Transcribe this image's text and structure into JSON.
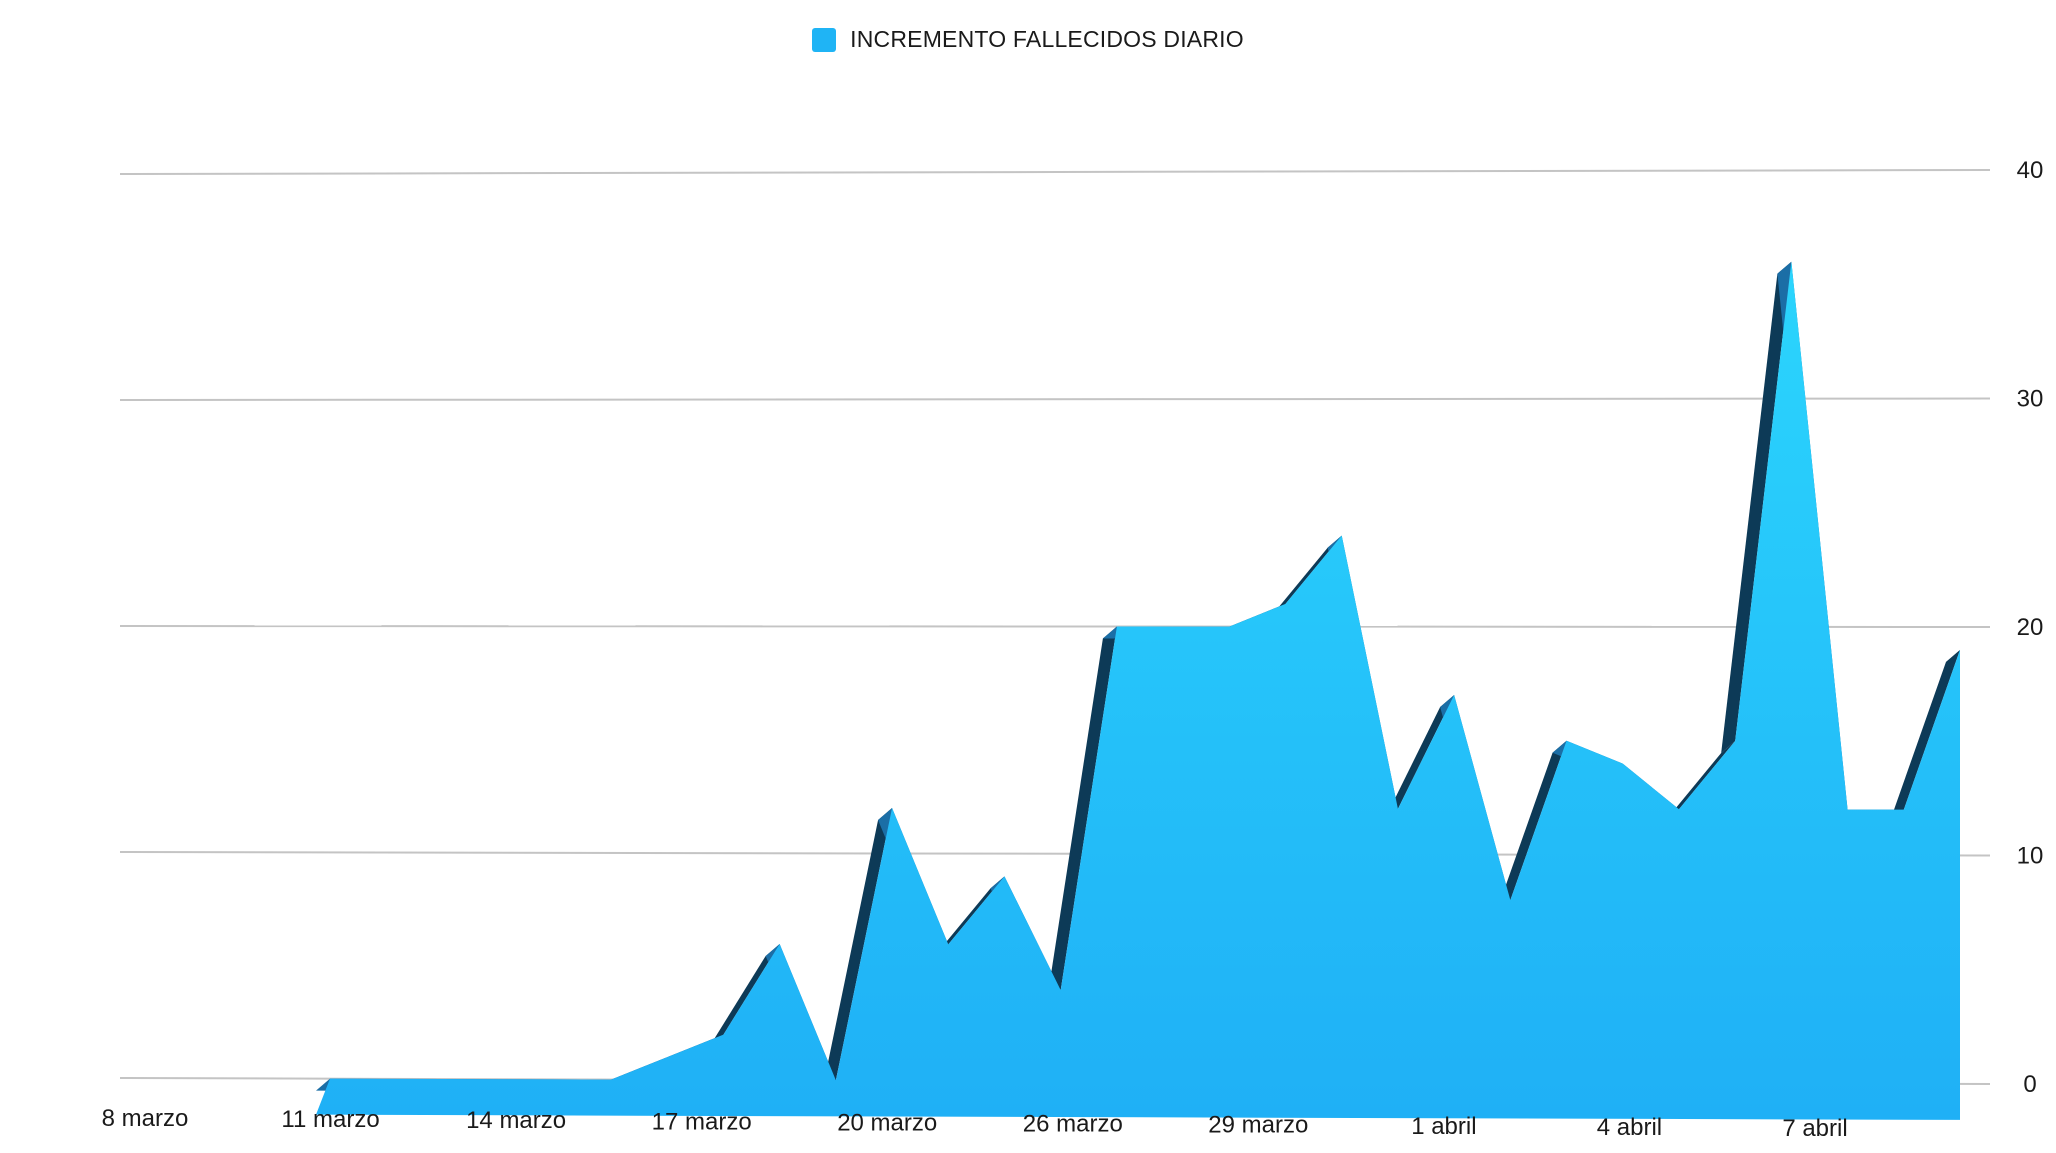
{
  "chart_data": {
    "type": "area",
    "title": "",
    "xlabel": "",
    "ylabel": "",
    "legend": {
      "position": "top",
      "entries": [
        "INCREMENTO FALLECIDOS DIARIO"
      ]
    },
    "x_tick_labels": [
      "8 marzo",
      "11 marzo",
      "14 marzo",
      "17 marzo",
      "20 marzo",
      "26 marzo",
      "29 marzo",
      "1 abril",
      "4 abril",
      "7 abril"
    ],
    "y_ticks": [
      0,
      10,
      20,
      30,
      40
    ],
    "ylim": [
      0,
      40
    ],
    "y_axis_side": "right",
    "grid": true,
    "series": [
      {
        "name": "INCREMENTO FALLECIDOS DIARIO",
        "color": "#1fb4f5",
        "values": [
          0,
          0,
          0,
          0,
          0,
          0,
          1,
          2,
          6,
          0,
          12,
          6,
          9,
          4,
          20,
          20,
          20,
          21,
          24,
          12,
          17,
          8,
          15,
          14,
          12,
          15,
          36,
          12,
          12,
          19
        ]
      }
    ]
  },
  "colors": {
    "area_top": "#2bd5fd",
    "area_bottom": "#1fb0f6",
    "side_face": "#0d3a57",
    "gridline": "#c4c4c4"
  }
}
